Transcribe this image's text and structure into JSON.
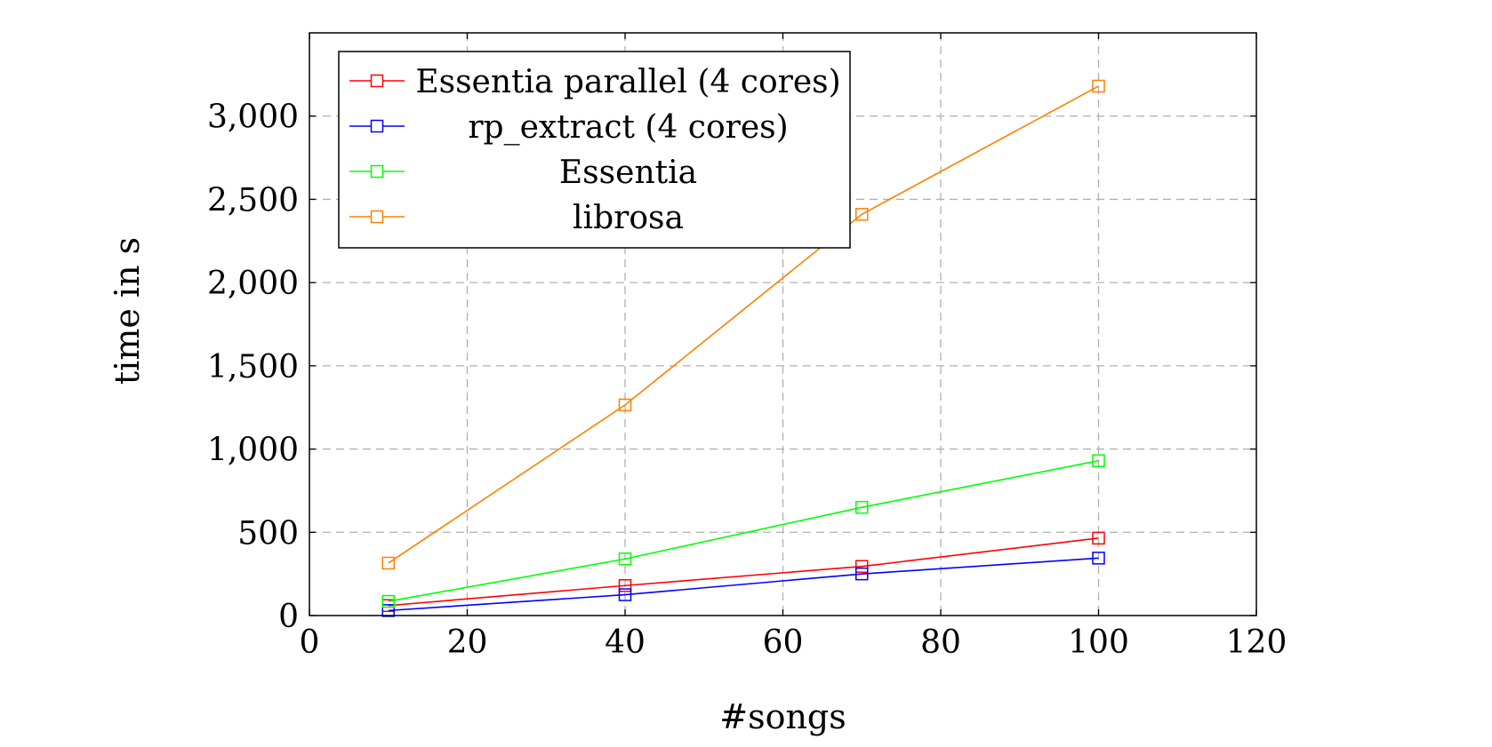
{
  "chart_data": {
    "type": "line",
    "title": "",
    "xlabel": "#songs",
    "ylabel": "time in s",
    "xlim": [
      0,
      120
    ],
    "ylim": [
      0,
      3500
    ],
    "xticks": [
      0,
      20,
      40,
      60,
      80,
      100,
      120
    ],
    "xtick_labels": [
      "0",
      "20",
      "40",
      "60",
      "80",
      "100",
      "120"
    ],
    "yticks": [
      0,
      500,
      1000,
      1500,
      2000,
      2500,
      3000
    ],
    "ytick_labels": [
      "0",
      "500",
      "1,000",
      "1,500",
      "2,000",
      "2,500",
      "3,000"
    ],
    "grid": true,
    "legend_position": "top-left",
    "x": [
      10,
      40,
      70,
      100
    ],
    "series": [
      {
        "name": "Essentia parallel (4 cores)",
        "color": "#ff0000",
        "marker": "square",
        "values": [
          60,
          180,
          295,
          465
        ]
      },
      {
        "name": "rp_extract (4 cores)",
        "color": "#0000ff",
        "marker": "square",
        "values": [
          30,
          125,
          250,
          345
        ]
      },
      {
        "name": "Essentia",
        "color": "#00ff00",
        "marker": "square",
        "values": [
          85,
          340,
          650,
          930
        ]
      },
      {
        "name": "librosa",
        "color": "#ff8000",
        "marker": "square",
        "values": [
          315,
          1265,
          2410,
          3180
        ]
      }
    ]
  }
}
